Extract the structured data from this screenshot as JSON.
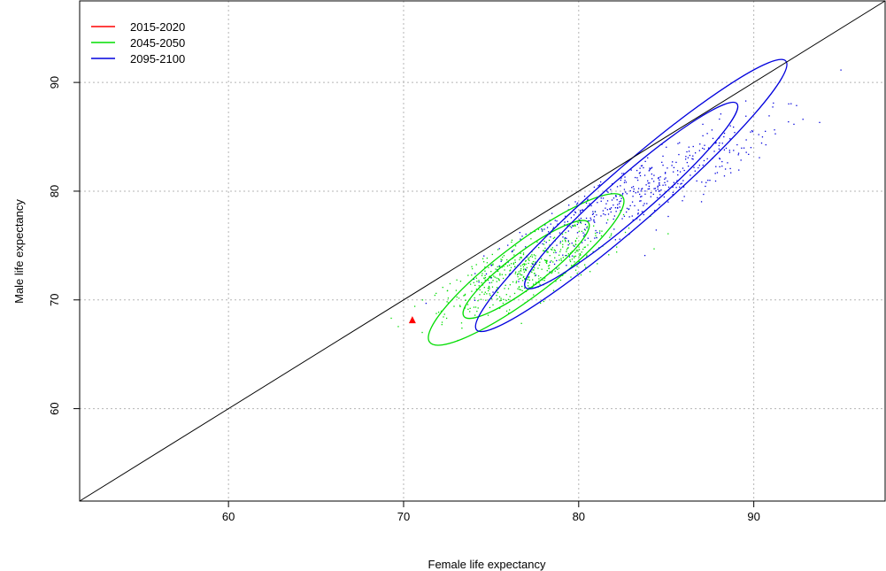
{
  "chart_data": {
    "type": "scatter",
    "title": "",
    "xlabel": "Female life expectancy",
    "ylabel": "Male life expectancy",
    "xlim": [
      51.5,
      97.5
    ],
    "ylim": [
      51.5,
      97.5
    ],
    "xticks": [
      60,
      70,
      80,
      90
    ],
    "yticks": [
      60,
      70,
      80,
      90
    ],
    "grid": true,
    "legend_position": "top-left",
    "diagonal": {
      "from": [
        51.5,
        51.5
      ],
      "to": [
        97.5,
        97.5
      ],
      "color": "#000000"
    },
    "series": [
      {
        "name": "2015-2020",
        "color": "#ff0000",
        "points": [
          [
            70.5,
            68.1
          ]
        ],
        "ellipses": []
      },
      {
        "name": "2045-2050",
        "color": "#00dd00",
        "ellipse_center": [
          77.0,
          72.8
        ],
        "ellipses": [
          {
            "rx": 4.45,
            "ry": 1.6,
            "angle_deg": 37
          },
          {
            "rx": 6.9,
            "ry": 2.45,
            "angle_deg": 37
          }
        ]
      },
      {
        "name": "2095-2100",
        "color": "#0000dd",
        "ellipse_center": [
          83.0,
          79.6
        ],
        "ellipses": [
          {
            "rx": 8.0,
            "ry": 1.9,
            "angle_deg": 41
          },
          {
            "rx": 11.7,
            "ry": 2.55,
            "angle_deg": 41
          }
        ]
      }
    ]
  }
}
